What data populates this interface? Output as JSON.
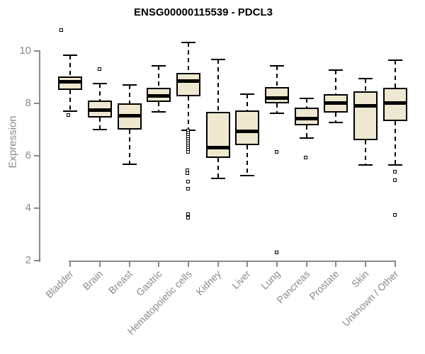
{
  "chart_data": {
    "type": "boxplot",
    "title": "ENSG00000115539 - PDCL3",
    "xlabel": "",
    "ylabel": "Expression",
    "ylim": [
      2,
      10.9
    ],
    "yticks": [
      2,
      4,
      6,
      8,
      10
    ],
    "grid": false,
    "legend": "none",
    "categories": [
      "Bladder",
      "Brain",
      "Breast",
      "Gastric",
      "Hematopoietic cells",
      "Kidney",
      "Liver",
      "Lung",
      "Pancreas",
      "Prostate",
      "Skin",
      "Unknown / Other"
    ],
    "boxes": [
      {
        "label": "Bladder",
        "low": 7.7,
        "q1": 8.5,
        "median": 8.83,
        "q3": 9.03,
        "high": 9.82,
        "outliers": [
          {
            "v": 10.79,
            "dx": -13
          },
          {
            "v": 7.56,
            "dx": -3
          }
        ]
      },
      {
        "label": "Brain",
        "low": 6.99,
        "q1": 7.46,
        "median": 7.73,
        "q3": 8.11,
        "high": 8.75,
        "outliers": [
          {
            "v": 9.3,
            "dx": 0
          }
        ]
      },
      {
        "label": "Breast",
        "low": 5.67,
        "q1": 7.01,
        "median": 7.53,
        "q3": 8.0,
        "high": 8.71,
        "outliers": []
      },
      {
        "label": "Gastric",
        "low": 7.67,
        "q1": 8.04,
        "median": 8.27,
        "q3": 8.58,
        "high": 9.43,
        "outliers": []
      },
      {
        "label": "Hematopoietic cells",
        "low": 6.98,
        "q1": 8.27,
        "median": 8.86,
        "q3": 9.16,
        "high": 10.32,
        "outliers": [
          {
            "v": 6.95,
            "dx": 0
          },
          {
            "v": 6.87,
            "dx": 0
          },
          {
            "v": 6.79,
            "dx": 0
          },
          {
            "v": 6.71,
            "dx": 0
          },
          {
            "v": 6.63,
            "dx": 0
          },
          {
            "v": 6.55,
            "dx": 0
          },
          {
            "v": 6.47,
            "dx": 0
          },
          {
            "v": 6.39,
            "dx": 0
          },
          {
            "v": 6.31,
            "dx": 0
          },
          {
            "v": 6.23,
            "dx": 0
          },
          {
            "v": 6.15,
            "dx": 0
          },
          {
            "v": 5.46,
            "dx": -1
          },
          {
            "v": 5.34,
            "dx": -1
          },
          {
            "v": 5.01,
            "dx": 0
          },
          {
            "v": 4.74,
            "dx": 0
          },
          {
            "v": 3.79,
            "dx": 0
          },
          {
            "v": 3.65,
            "dx": 0
          }
        ]
      },
      {
        "label": "Kidney",
        "low": 5.15,
        "q1": 5.93,
        "median": 6.32,
        "q3": 7.68,
        "high": 9.66,
        "outliers": []
      },
      {
        "label": "Liver",
        "low": 5.24,
        "q1": 6.41,
        "median": 6.92,
        "q3": 7.73,
        "high": 8.35,
        "outliers": []
      },
      {
        "label": "Lung",
        "low": 7.63,
        "q1": 8.0,
        "median": 8.21,
        "q3": 8.62,
        "high": 9.43,
        "outliers": [
          {
            "v": 6.15,
            "dx": 0
          },
          {
            "v": 2.32,
            "dx": 0
          }
        ]
      },
      {
        "label": "Pancreas",
        "low": 6.67,
        "q1": 7.15,
        "median": 7.42,
        "q3": 7.84,
        "high": 8.2,
        "outliers": [
          {
            "v": 5.93,
            "dx": -1
          }
        ]
      },
      {
        "label": "Prostate",
        "low": 7.26,
        "q1": 7.64,
        "median": 8.0,
        "q3": 8.34,
        "high": 9.26,
        "outliers": []
      },
      {
        "label": "Skin",
        "low": 5.64,
        "q1": 6.6,
        "median": 7.9,
        "q3": 8.47,
        "high": 8.95,
        "outliers": []
      },
      {
        "label": "Unknown / Other",
        "low": 5.64,
        "q1": 7.33,
        "median": 8.0,
        "q3": 8.59,
        "high": 9.64,
        "outliers": [
          {
            "v": 5.39,
            "dx": 0
          },
          {
            "v": 5.06,
            "dx": 0
          },
          {
            "v": 3.75,
            "dx": 0
          }
        ]
      }
    ]
  },
  "colors": {
    "box_fill": "#EDE8CF",
    "box_border": "#000000",
    "median": "#000000",
    "axis": "#8A8A8A",
    "title_text": "#000000",
    "background": "#FFFFFF"
  }
}
